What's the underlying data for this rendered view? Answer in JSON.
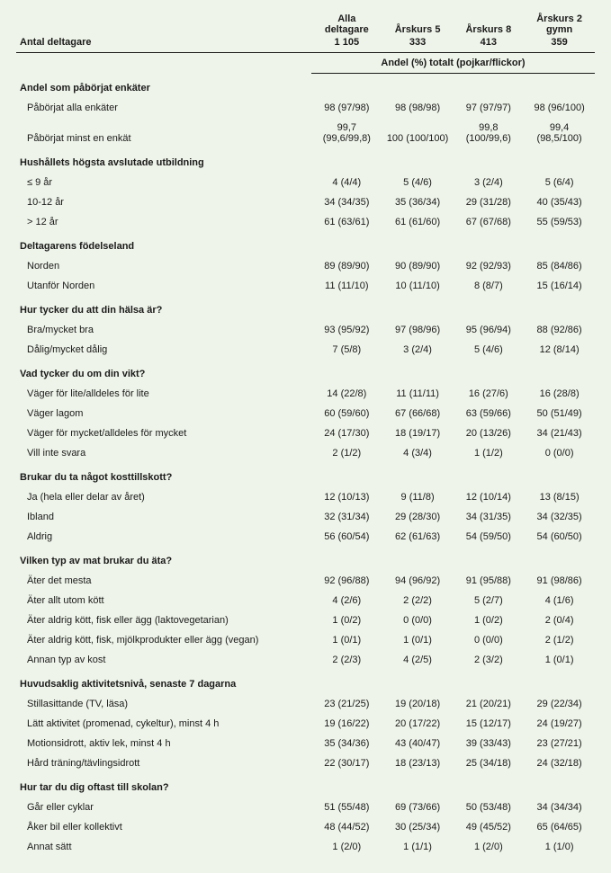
{
  "header": {
    "row_label": "Antal deltagare",
    "columns": [
      {
        "title": "Alla deltagare",
        "n": "1 105"
      },
      {
        "title": "Årskurs 5",
        "n": "333"
      },
      {
        "title": "Årskurs 8",
        "n": "413"
      },
      {
        "title": "Årskurs 2 gymn",
        "n": "359"
      }
    ],
    "subheader": "Andel (%) totalt (pojkar/flickor)"
  },
  "sections": [
    {
      "title": "Andel som påbörjat enkäter",
      "rows": [
        {
          "label": "Påbörjat alla enkäter",
          "values": [
            "98 (97/98)",
            "98 (98/98)",
            "97 (97/97)",
            "98 (96/100)"
          ]
        },
        {
          "label": "Påbörjat minst en enkät",
          "values": [
            "99,7 (99,6/99,8)",
            "100 (100/100)",
            "99,8 (100/99,6)",
            "99,4 (98,5/100)"
          ]
        }
      ]
    },
    {
      "title": "Hushållets högsta avslutade utbildning",
      "rows": [
        {
          "label": "≤ 9 år",
          "values": [
            "4 (4/4)",
            "5 (4/6)",
            "3 (2/4)",
            "5 (6/4)"
          ]
        },
        {
          "label": "10-12 år",
          "values": [
            "34 (34/35)",
            "35 (36/34)",
            "29 (31/28)",
            "40 (35/43)"
          ]
        },
        {
          "label": "> 12 år",
          "values": [
            "61 (63/61)",
            "61 (61/60)",
            "67 (67/68)",
            "55 (59/53)"
          ]
        }
      ]
    },
    {
      "title": "Deltagarens födelseland",
      "rows": [
        {
          "label": "Norden",
          "values": [
            "89 (89/90)",
            "90 (89/90)",
            "92 (92/93)",
            "85 (84/86)"
          ]
        },
        {
          "label": "Utanför Norden",
          "values": [
            "11 (11/10)",
            "10 (11/10)",
            "8 (8/7)",
            "15 (16/14)"
          ]
        }
      ]
    },
    {
      "title": "Hur tycker du att din hälsa är?",
      "rows": [
        {
          "label": "Bra/mycket bra",
          "values": [
            "93 (95/92)",
            "97 (98/96)",
            "95 (96/94)",
            "88 (92/86)"
          ]
        },
        {
          "label": "Dålig/mycket dålig",
          "values": [
            "7 (5/8)",
            "3 (2/4)",
            "5 (4/6)",
            "12 (8/14)"
          ]
        }
      ]
    },
    {
      "title": "Vad tycker du om din vikt?",
      "rows": [
        {
          "label": "Väger för lite/alldeles för lite",
          "values": [
            "14 (22/8)",
            "11 (11/11)",
            "16 (27/6)",
            "16 (28/8)"
          ]
        },
        {
          "label": "Väger lagom",
          "values": [
            "60 (59/60)",
            "67 (66/68)",
            "63 (59/66)",
            "50 (51/49)"
          ]
        },
        {
          "label": "Väger för mycket/alldeles för mycket",
          "values": [
            "24 (17/30)",
            "18 (19/17)",
            "20 (13/26)",
            "34 (21/43)"
          ]
        },
        {
          "label": "Vill inte svara",
          "values": [
            "2 (1/2)",
            "4 (3/4)",
            "1 (1/2)",
            "0 (0/0)"
          ]
        }
      ]
    },
    {
      "title": "Brukar du ta något kosttillskott?",
      "rows": [
        {
          "label": "Ja (hela eller delar av året)",
          "values": [
            "12 (10/13)",
            "9 (11/8)",
            "12 (10/14)",
            "13 (8/15)"
          ]
        },
        {
          "label": "Ibland",
          "values": [
            "32 (31/34)",
            "29 (28/30)",
            "34 (31/35)",
            "34 (32/35)"
          ]
        },
        {
          "label": "Aldrig",
          "values": [
            "56 (60/54)",
            "62 (61/63)",
            "54 (59/50)",
            "54 (60/50)"
          ]
        }
      ]
    },
    {
      "title": "Vilken typ av mat brukar du äta?",
      "rows": [
        {
          "label": "Äter det mesta",
          "values": [
            "92 (96/88)",
            "94 (96/92)",
            "91 (95/88)",
            "91 (98/86)"
          ]
        },
        {
          "label": "Äter allt utom kött",
          "values": [
            "4 (2/6)",
            "2 (2/2)",
            "5 (2/7)",
            "4 (1/6)"
          ]
        },
        {
          "label": "Äter aldrig kött, fisk eller ägg (laktovegetarian)",
          "values": [
            "1 (0/2)",
            "0 (0/0)",
            "1 (0/2)",
            "2 (0/4)"
          ]
        },
        {
          "label": "Äter aldrig kött, fisk, mjölkprodukter eller ägg (vegan)",
          "values": [
            "1 (0/1)",
            "1 (0/1)",
            "0 (0/0)",
            "2 (1/2)"
          ]
        },
        {
          "label": "Annan typ av kost",
          "values": [
            "2 (2/3)",
            "4 (2/5)",
            "2 (3/2)",
            "1 (0/1)"
          ]
        }
      ]
    },
    {
      "title": "Huvudsaklig aktivitetsnivå, senaste 7 dagarna",
      "rows": [
        {
          "label": "Stillasittande (TV, läsa)",
          "values": [
            "23 (21/25)",
            "19 (20/18)",
            "21 (20/21)",
            "29 (22/34)"
          ]
        },
        {
          "label": "Lätt aktivitet (promenad, cykeltur), minst 4 h",
          "values": [
            "19 (16/22)",
            "20 (17/22)",
            "15 (12/17)",
            "24 (19/27)"
          ]
        },
        {
          "label": "Motionsidrott, aktiv lek, minst 4 h",
          "values": [
            "35 (34/36)",
            "43 (40/47)",
            "39 (33/43)",
            "23 (27/21)"
          ]
        },
        {
          "label": "Hård träning/tävlingsidrott",
          "values": [
            "22 (30/17)",
            "18 (23/13)",
            "25 (34/18)",
            "24 (32/18)"
          ]
        }
      ]
    },
    {
      "title": "Hur tar du dig oftast till skolan?",
      "rows": [
        {
          "label": "Går eller cyklar",
          "values": [
            "51 (55/48)",
            "69 (73/66)",
            "50 (53/48)",
            "34 (34/34)"
          ]
        },
        {
          "label": "Åker bil eller kollektivt",
          "values": [
            "48 (44/52)",
            "30 (25/34)",
            "49 (45/52)",
            "65 (64/65)"
          ]
        },
        {
          "label": "Annat sätt",
          "values": [
            "1 (2/0)",
            "1 (1/1)",
            "1 (2/0)",
            "1 (1/0)"
          ]
        }
      ]
    }
  ]
}
